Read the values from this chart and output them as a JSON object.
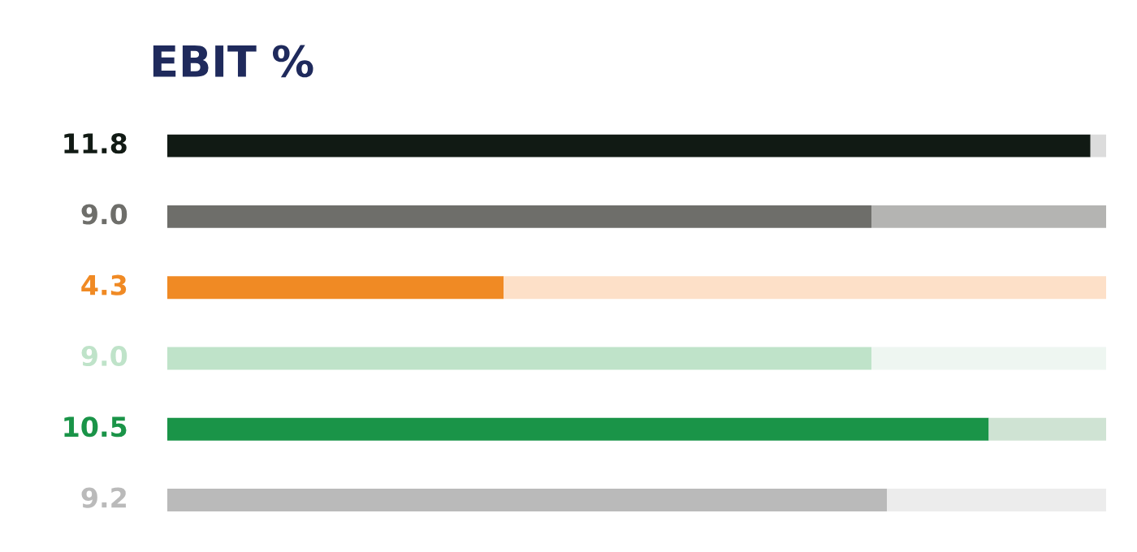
{
  "chart_data": {
    "type": "bar",
    "orientation": "horizontal",
    "stacked": true,
    "title": "EBIT %",
    "categories": [
      null,
      null,
      null,
      null,
      null,
      null
    ],
    "series": [
      {
        "colors": [
          "#111a14",
          "#6e6e6a",
          "#f08a24",
          "#bfe3c9",
          "#1a9448",
          "#bababa"
        ],
        "values": [
          11.8,
          9.0,
          4.3,
          9.0,
          10.5,
          9.2
        ],
        "value_labels": [
          "11.8",
          "9.0",
          "4.3",
          "9.0",
          "10.5",
          "9.2"
        ]
      },
      {
        "colors": [
          "#dcdcdc",
          "#b4b4b2",
          "#fde0c8",
          "#eef6f1",
          "#cfe3d3",
          "#ececec"
        ],
        "values": [
          0.2,
          3.0,
          7.7,
          3.0,
          1.5,
          2.8
        ]
      }
    ],
    "xlim": [
      0,
      12
    ],
    "tick_labels": false,
    "grid": false,
    "legend": false
  }
}
